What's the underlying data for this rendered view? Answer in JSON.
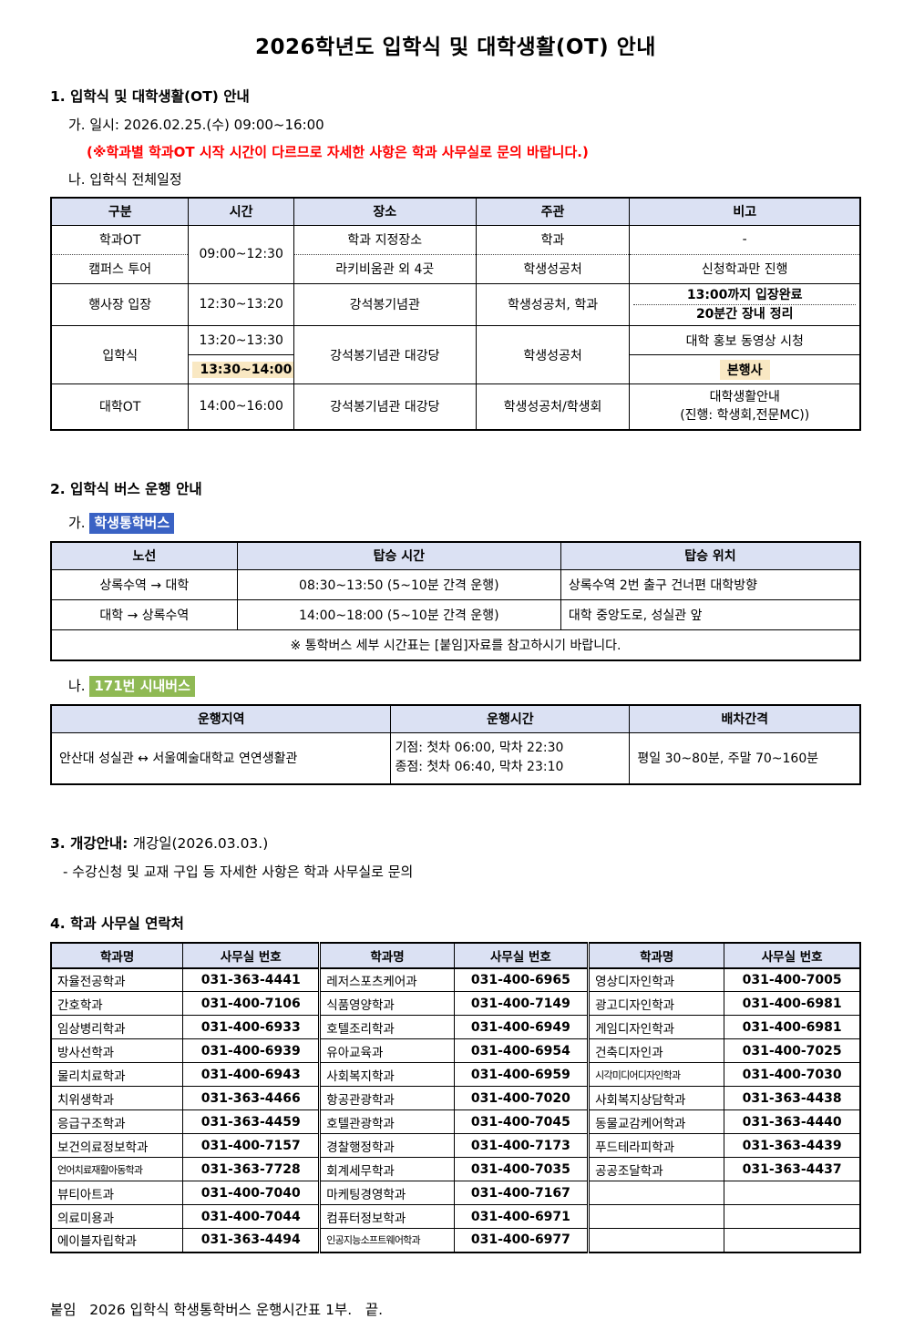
{
  "title": "2026학년도 입학식 및 대학생활(OT) 안내",
  "colors": {
    "table_header_bg": "#dbe1f3",
    "highlight_yellow": "#f9e8c3",
    "highlight_blue": "#3a62c4",
    "highlight_green": "#8fb954",
    "note_red": "#ff0000"
  },
  "section1": {
    "heading": "1. 입학식 및 대학생활(OT) 안내",
    "date_line": "가. 일시: 2026.02.25.(수) 09:00~16:00",
    "red_note": "(※학과별 학과OT 시작 시간이 다르므로 자세한 사항은 학과 사무실로 문의 바랍니다.)",
    "schedule_label": "나. 입학식 전체일정",
    "schedule_table": {
      "headers": [
        "구분",
        "시간",
        "장소",
        "주관",
        "비고"
      ],
      "dept_ot": {
        "category": "학과OT",
        "time_merged": "09:00~12:30",
        "place": "학과 지정장소",
        "host": "학과",
        "note": "-"
      },
      "campus_tour": {
        "category": "캠퍼스 투어",
        "place": "라키비움관 외 4곳",
        "host": "학생성공처",
        "note": "신청학과만 진행"
      },
      "entrance": {
        "category": "행사장 입장",
        "time": "12:30~13:20",
        "place": "강석봉기념관",
        "host": "학생성공처, 학과",
        "note1": "13:00까지 입장완료",
        "note2": "20분간 장내 정리"
      },
      "ceremony": {
        "category": "입학식",
        "time1": "13:20~13:30",
        "time2": "13:30~14:00",
        "place": "강석봉기념관 대강당",
        "host": "학생성공처",
        "note1": "대학 홍보 동영상 시청",
        "note2": "본행사"
      },
      "univ_ot": {
        "category": "대학OT",
        "time": "14:00~16:00",
        "place": "강석봉기념관 대강당",
        "host": "학생성공처/학생회",
        "note1": "대학생활안내",
        "note2": "(진행: 학생회,전문MC))"
      }
    }
  },
  "section2": {
    "heading": "2. 입학식 버스 운행 안내",
    "shuttle_prefix": "가.",
    "shuttle_label": "학생통학버스",
    "shuttle_table": {
      "headers": [
        "노선",
        "탑승 시간",
        "탑승 위치"
      ],
      "rows": [
        [
          "상록수역 → 대학",
          "08:30~13:50 (5~10분 간격 운행)",
          "상록수역 2번 출구 건너편 대학방향"
        ],
        [
          "대학 → 상록수역",
          "14:00~18:00 (5~10분 간격 운행)",
          "대학 중앙도로, 성실관 앞"
        ]
      ],
      "note": "※ 통학버스 세부 시간표는 [붙임]자료를 참고하시기 바랍니다."
    },
    "city_prefix": "나.",
    "city_label": "171번 시내버스",
    "city_table": {
      "headers": [
        "운행지역",
        "운행시간",
        "배차간격"
      ],
      "row": {
        "region": "안산대 성실관 ↔ 서울예술대학교 연연생활관",
        "time_line1": "기점: 첫차 06:00, 막차 22:30",
        "time_line2": "종점: 첫차 06:40, 막차 23:10",
        "interval": "평일 30~80분, 주말 70~160분"
      }
    }
  },
  "section3": {
    "heading_bold": "3. 개강안내:",
    "heading_normal": "개강일(2026.03.03.)",
    "item": "- 수강신청 및 교재 구입 등 자세한 사항은 학과 사무실로 문의"
  },
  "section4": {
    "heading": "4. 학과 사무실 연락처",
    "table": {
      "headers": [
        "학과명",
        "사무실 번호",
        "학과명",
        "사무실 번호",
        "학과명",
        "사무실 번호"
      ],
      "rows": [
        [
          "자율전공학과",
          "031-363-4441",
          "레저스포츠케어과",
          "031-400-6965",
          "영상디자인학과",
          "031-400-7005"
        ],
        [
          "간호학과",
          "031-400-7106",
          "식품영양학과",
          "031-400-7149",
          "광고디자인학과",
          "031-400-6981"
        ],
        [
          "임상병리학과",
          "031-400-6933",
          "호텔조리학과",
          "031-400-6949",
          "게임디자인학과",
          "031-400-6981"
        ],
        [
          "방사선학과",
          "031-400-6939",
          "유아교육과",
          "031-400-6954",
          "건축디자인과",
          "031-400-7025"
        ],
        [
          "물리치료학과",
          "031-400-6943",
          "사회복지학과",
          "031-400-6959",
          "시각미디어디자인학과",
          "031-400-7030"
        ],
        [
          "치위생학과",
          "031-363-4466",
          "항공관광학과",
          "031-400-7020",
          "사회복지상담학과",
          "031-363-4438"
        ],
        [
          "응급구조학과",
          "031-363-4459",
          "호텔관광학과",
          "031-400-7045",
          "동물교감케어학과",
          "031-363-4440"
        ],
        [
          "보건의료정보학과",
          "031-400-7157",
          "경찰행정학과",
          "031-400-7173",
          "푸드테라피학과",
          "031-363-4439"
        ],
        [
          "언어치료재활아동학과",
          "031-363-7728",
          "회계세무학과",
          "031-400-7035",
          "공공조달학과",
          "031-363-4437"
        ],
        [
          "뷰티아트과",
          "031-400-7040",
          "마케팅경영학과",
          "031-400-7167",
          "",
          ""
        ],
        [
          "의료미용과",
          "031-400-7044",
          "컴퓨터정보학과",
          "031-400-6971",
          "",
          ""
        ],
        [
          "에이블자립학과",
          "031-363-4494",
          "인공지능소프트웨어학과",
          "031-400-6977",
          "",
          ""
        ]
      ]
    }
  },
  "footer": "붙임   2026 입학식 학생통학버스 운행시간표 1부.   끝."
}
